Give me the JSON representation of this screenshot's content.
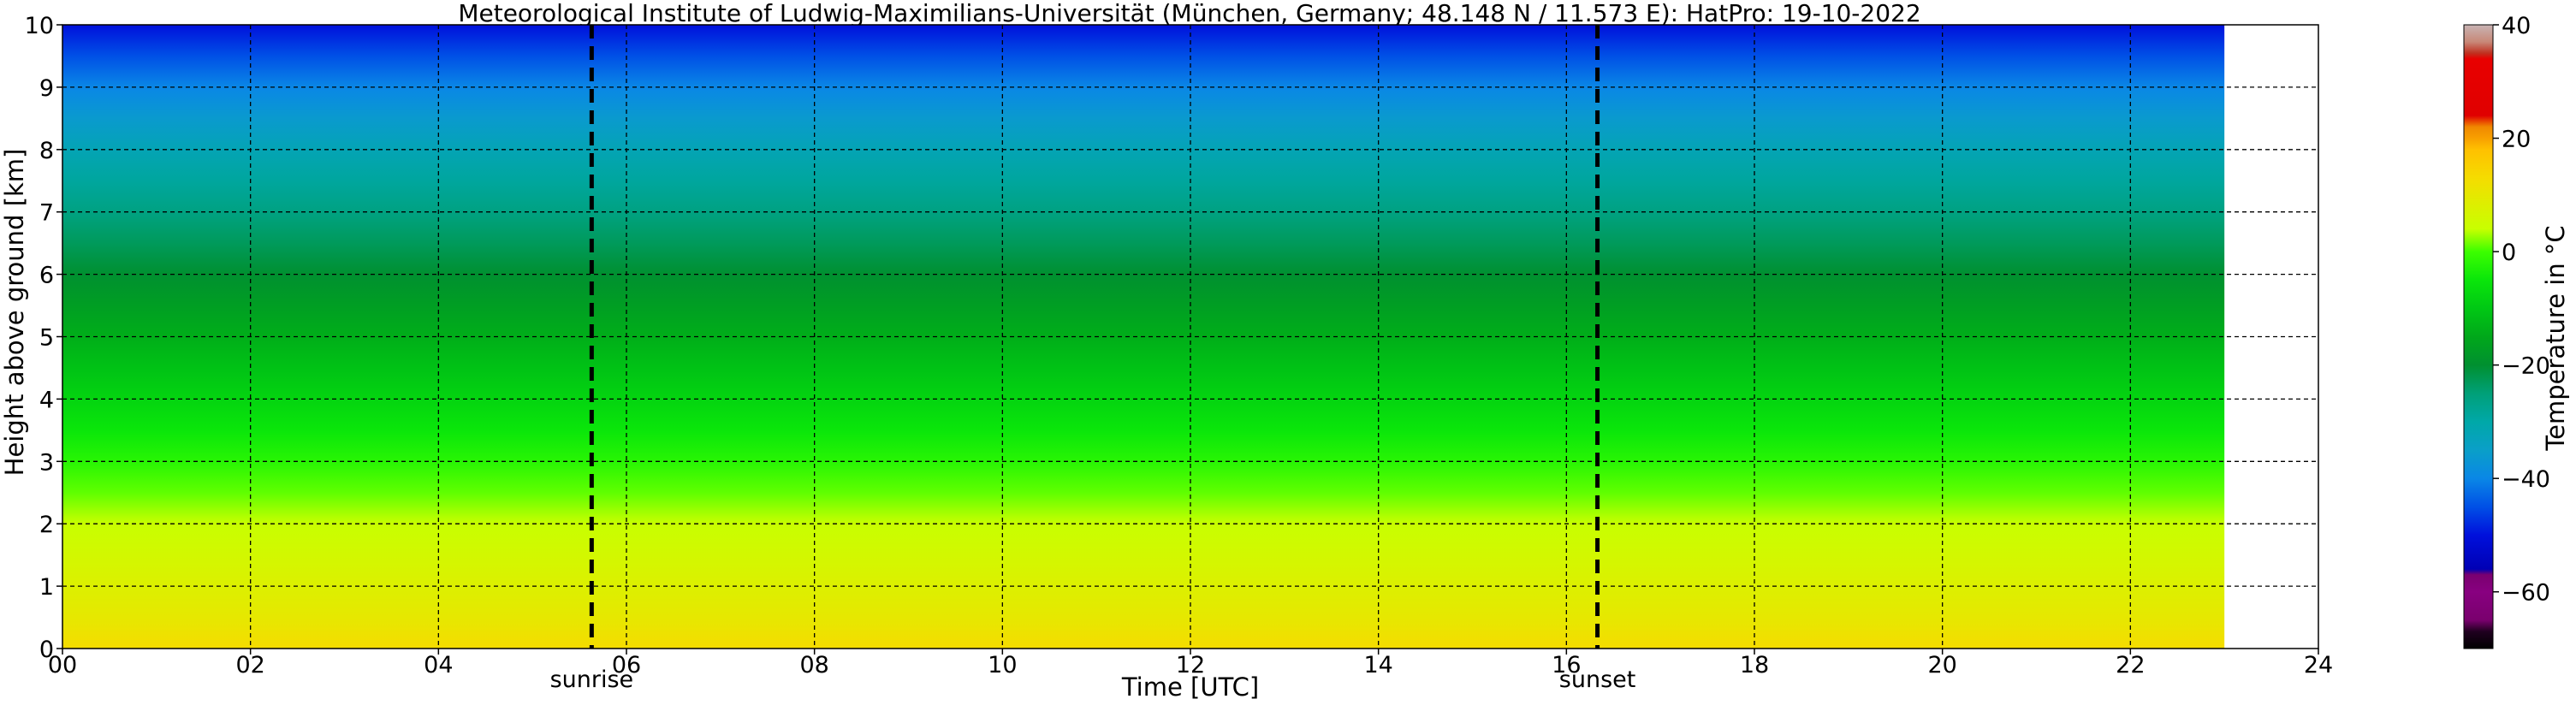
{
  "chart_data": {
    "type": "heatmap",
    "title": "Meteorological Institute of Ludwig-Maximilians-Universität (München, Germany; 48.148 N / 11.573 E):    HatPro: 19-10-2022",
    "xlabel": "Time [UTC]",
    "ylabel": "Height above ground [km]",
    "xlim": [
      0,
      24
    ],
    "ylim": [
      0,
      10
    ],
    "x_ticks": [
      "00",
      "02",
      "04",
      "06",
      "08",
      "10",
      "12",
      "14",
      "16",
      "18",
      "20",
      "22",
      "24"
    ],
    "y_ticks": [
      "0",
      "1",
      "2",
      "3",
      "4",
      "5",
      "6",
      "7",
      "8",
      "9",
      "10"
    ],
    "grid": true,
    "data_x_range": [
      0,
      23.0
    ],
    "heights_km": [
      0.0,
      0.5,
      1.0,
      1.5,
      2.0,
      2.5,
      3.0,
      3.5,
      4.0,
      4.5,
      5.0,
      5.5,
      6.0,
      6.5,
      7.0,
      7.5,
      8.0,
      8.5,
      9.0,
      9.5,
      10.0
    ],
    "temperature_profile_c": [
      13,
      10,
      8,
      6,
      4,
      1,
      -2,
      -5,
      -8,
      -11,
      -14,
      -17,
      -20,
      -23,
      -26,
      -29,
      -32,
      -36,
      -40,
      -45,
      -50
    ],
    "markers": [
      {
        "label": "sunrise",
        "time": 5.63
      },
      {
        "label": "sunset",
        "time": 16.33
      }
    ],
    "colorbar": {
      "label": "Temperature in $^\\circ$C",
      "range": [
        -70,
        40
      ],
      "ticks": [
        "40",
        "20",
        "0",
        "−20",
        "−40",
        "−60"
      ],
      "colors": [
        {
          "t": -70,
          "c": "#000000"
        },
        {
          "t": -67,
          "c": "#200020"
        },
        {
          "t": -65,
          "c": "#7a006e"
        },
        {
          "t": -60,
          "c": "#880080"
        },
        {
          "t": -57,
          "c": "#7a0070"
        },
        {
          "t": -56,
          "c": "#0000b4"
        },
        {
          "t": -50,
          "c": "#0010dc"
        },
        {
          "t": -45,
          "c": "#0050e6"
        },
        {
          "t": -40,
          "c": "#0a87e6"
        },
        {
          "t": -35,
          "c": "#0a9fc8"
        },
        {
          "t": -30,
          "c": "#00a8a8"
        },
        {
          "t": -25,
          "c": "#00a078"
        },
        {
          "t": -20,
          "c": "#009030"
        },
        {
          "t": -15,
          "c": "#00a81a"
        },
        {
          "t": -10,
          "c": "#00c814"
        },
        {
          "t": -5,
          "c": "#0ae60a"
        },
        {
          "t": 0,
          "c": "#3cff00"
        },
        {
          "t": 4,
          "c": "#c8ff00"
        },
        {
          "t": 8,
          "c": "#dcf000"
        },
        {
          "t": 13,
          "c": "#f5dc00"
        },
        {
          "t": 18,
          "c": "#ffc000"
        },
        {
          "t": 20,
          "c": "#f8a000"
        },
        {
          "t": 22,
          "c": "#f08800"
        },
        {
          "t": 24,
          "c": "#e00000"
        },
        {
          "t": 34,
          "c": "#e80000"
        },
        {
          "t": 35,
          "c": "#c03020"
        },
        {
          "t": 37,
          "c": "#c88878"
        },
        {
          "t": 40,
          "c": "#c8b4b4"
        }
      ]
    }
  }
}
